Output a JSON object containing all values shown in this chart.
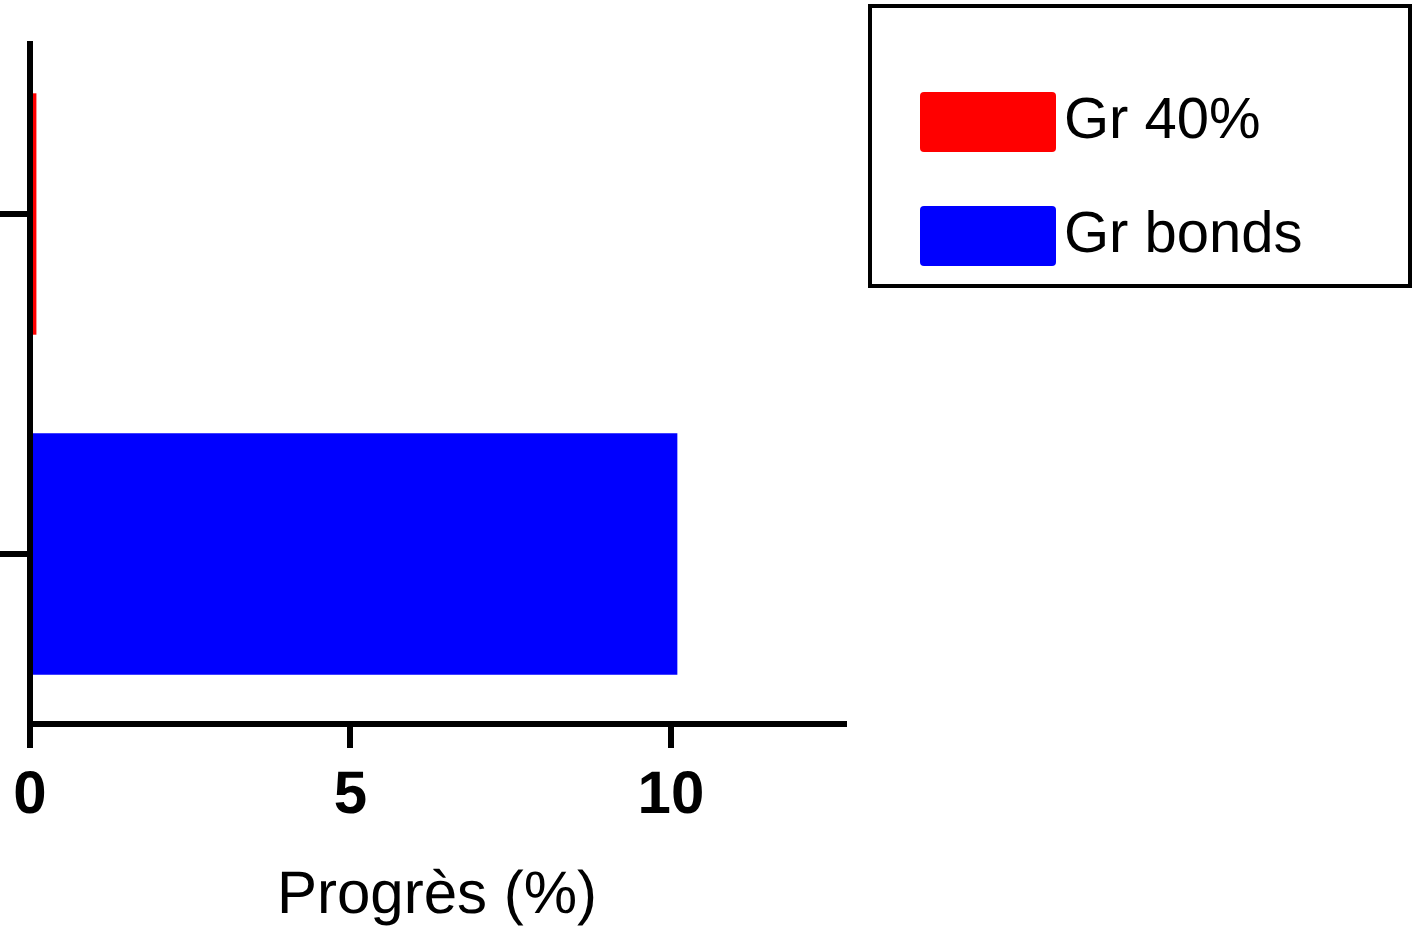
{
  "chart_data": {
    "type": "bar",
    "orientation": "horizontal",
    "xlabel": "Progrès (%)",
    "categories": [
      null,
      null
    ],
    "series": [
      {
        "name": "Gr 40%",
        "color": "#ff0000",
        "values": [
          0.1,
          null
        ]
      },
      {
        "name": "Gr bonds",
        "color": "#0000ff",
        "values": [
          null,
          10.1
        ]
      }
    ],
    "xlim": [
      0,
      12.7
    ],
    "xticks": [
      0,
      5,
      10
    ],
    "tick_labels": "x",
    "grid": false,
    "legend": "top right"
  }
}
